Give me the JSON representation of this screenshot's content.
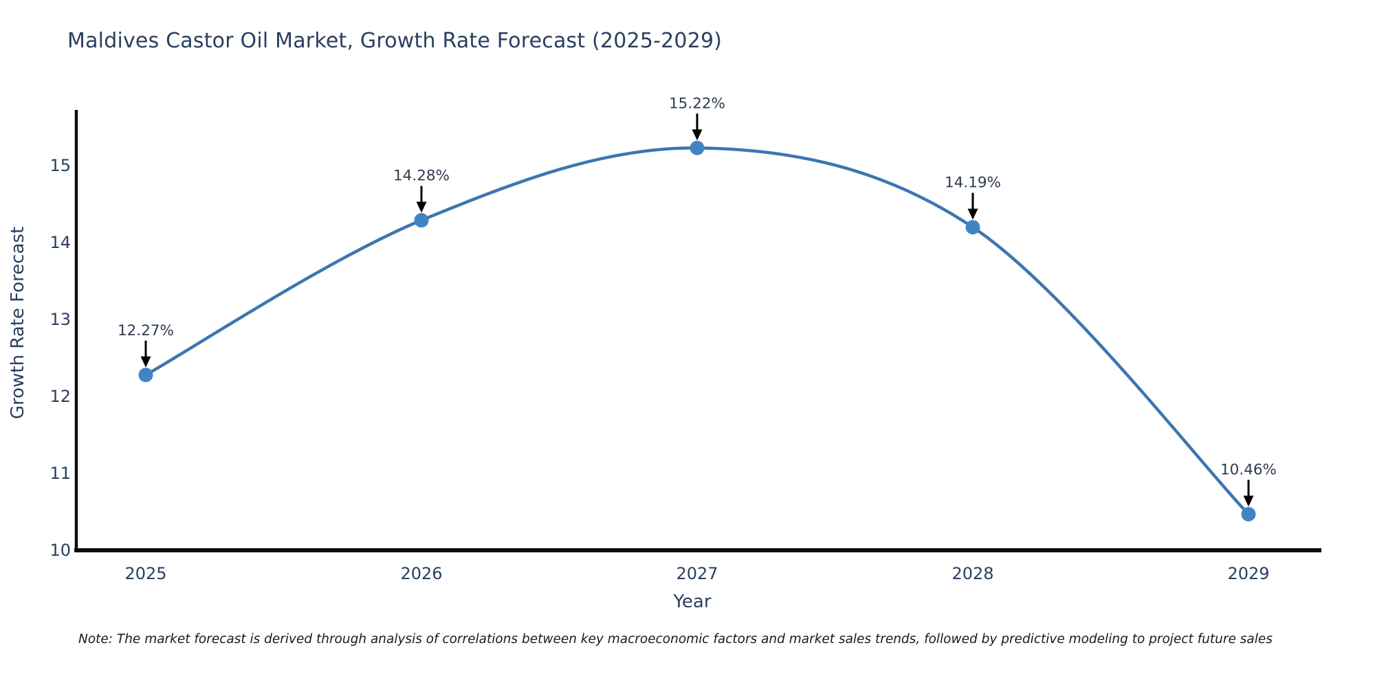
{
  "chart_data": {
    "type": "line",
    "title": "Maldives Castor Oil Market, Growth Rate Forecast (2025-2029)",
    "xlabel": "Year",
    "ylabel": "Growth Rate Forecast",
    "categories": [
      "2025",
      "2026",
      "2027",
      "2028",
      "2029"
    ],
    "series": [
      {
        "name": "Growth Rate Forecast",
        "values": [
          12.27,
          14.28,
          15.22,
          14.19,
          10.46
        ],
        "point_labels": [
          "12.27%",
          "14.28%",
          "15.22%",
          "14.19%",
          "10.46%"
        ]
      }
    ],
    "yticks": [
      "10",
      "11",
      "12",
      "13",
      "14",
      "15"
    ],
    "ytick_values": [
      10,
      11,
      12,
      13,
      14,
      15
    ],
    "ylim": [
      10,
      15.72
    ],
    "line_shape": "spline",
    "grid": false,
    "legend_position": "none",
    "colors": {
      "line": "#3c76b0",
      "marker": "#4184c4",
      "axis": "#0d0d0d",
      "title_text": "#2a3f5f",
      "axis_label_text": "#2a3f5f",
      "tick_text": "#2a3f5f",
      "annotation_text": "#2e3b4e",
      "arrow": "#000000",
      "note_text": "#1a1a1a",
      "background": "#ffffff"
    }
  },
  "footnote": "Note: The market forecast is derived through analysis of correlations between key macroeconomic factors and market sales trends, followed by predictive modeling to project future sales"
}
